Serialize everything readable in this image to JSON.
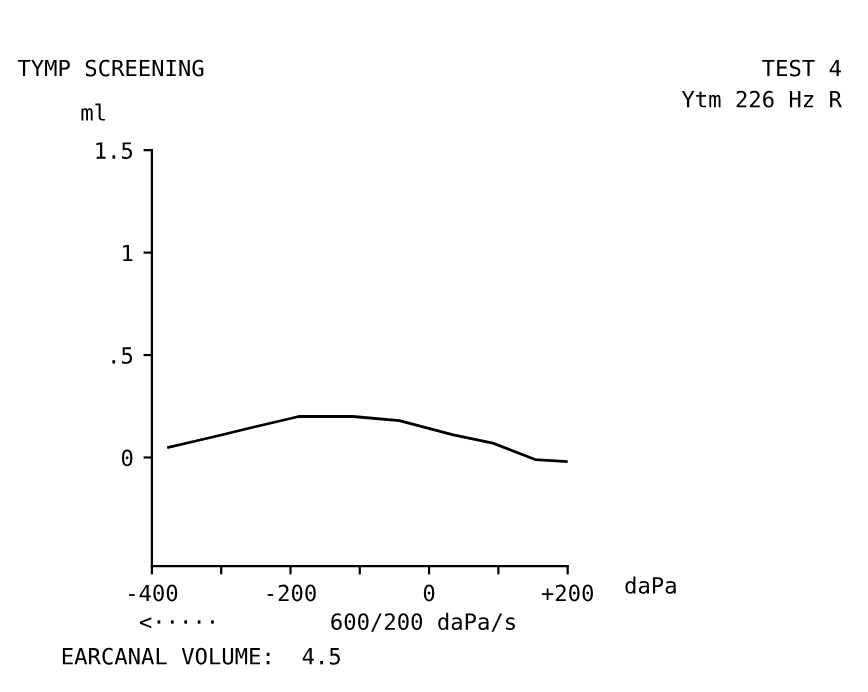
{
  "chart_data": {
    "type": "line",
    "title": "TYMP SCREENING",
    "xlabel": "daPa",
    "ylabel": "ml",
    "annotations": [
      "TEST 4",
      "Ytm 226 Hz R",
      "<·····",
      "600/200 daPa/s",
      "EARCANAL VOLUME:  4.5"
    ],
    "x": [
      -376,
      -312,
      -251,
      -188,
      -110,
      -43,
      35,
      92,
      153,
      200
    ],
    "series": [
      {
        "color": "#000000",
        "values": [
          0.05,
          0.1,
          0.15,
          0.2,
          0.2,
          0.18,
          0.11,
          0.07,
          -0.01,
          -0.02
        ]
      }
    ],
    "xlim": [
      -400,
      200
    ],
    "xticks": [
      -400,
      {
        "value": -300,
        "label": null
      },
      -200,
      {
        "value": -100,
        "label": null
      },
      0,
      {
        "value": 100,
        "label": null
      },
      {
        "value": 200,
        "label": "+200"
      }
    ],
    "ylim": [
      -0.53,
      1.5
    ],
    "yticks": [
      {
        "value": 0,
        "label": "0"
      },
      {
        "value": 0.5,
        "label": ".5"
      },
      1,
      1.5
    ],
    "grid": false,
    "legend": false,
    "marker": "none",
    "line_style": "solid"
  }
}
